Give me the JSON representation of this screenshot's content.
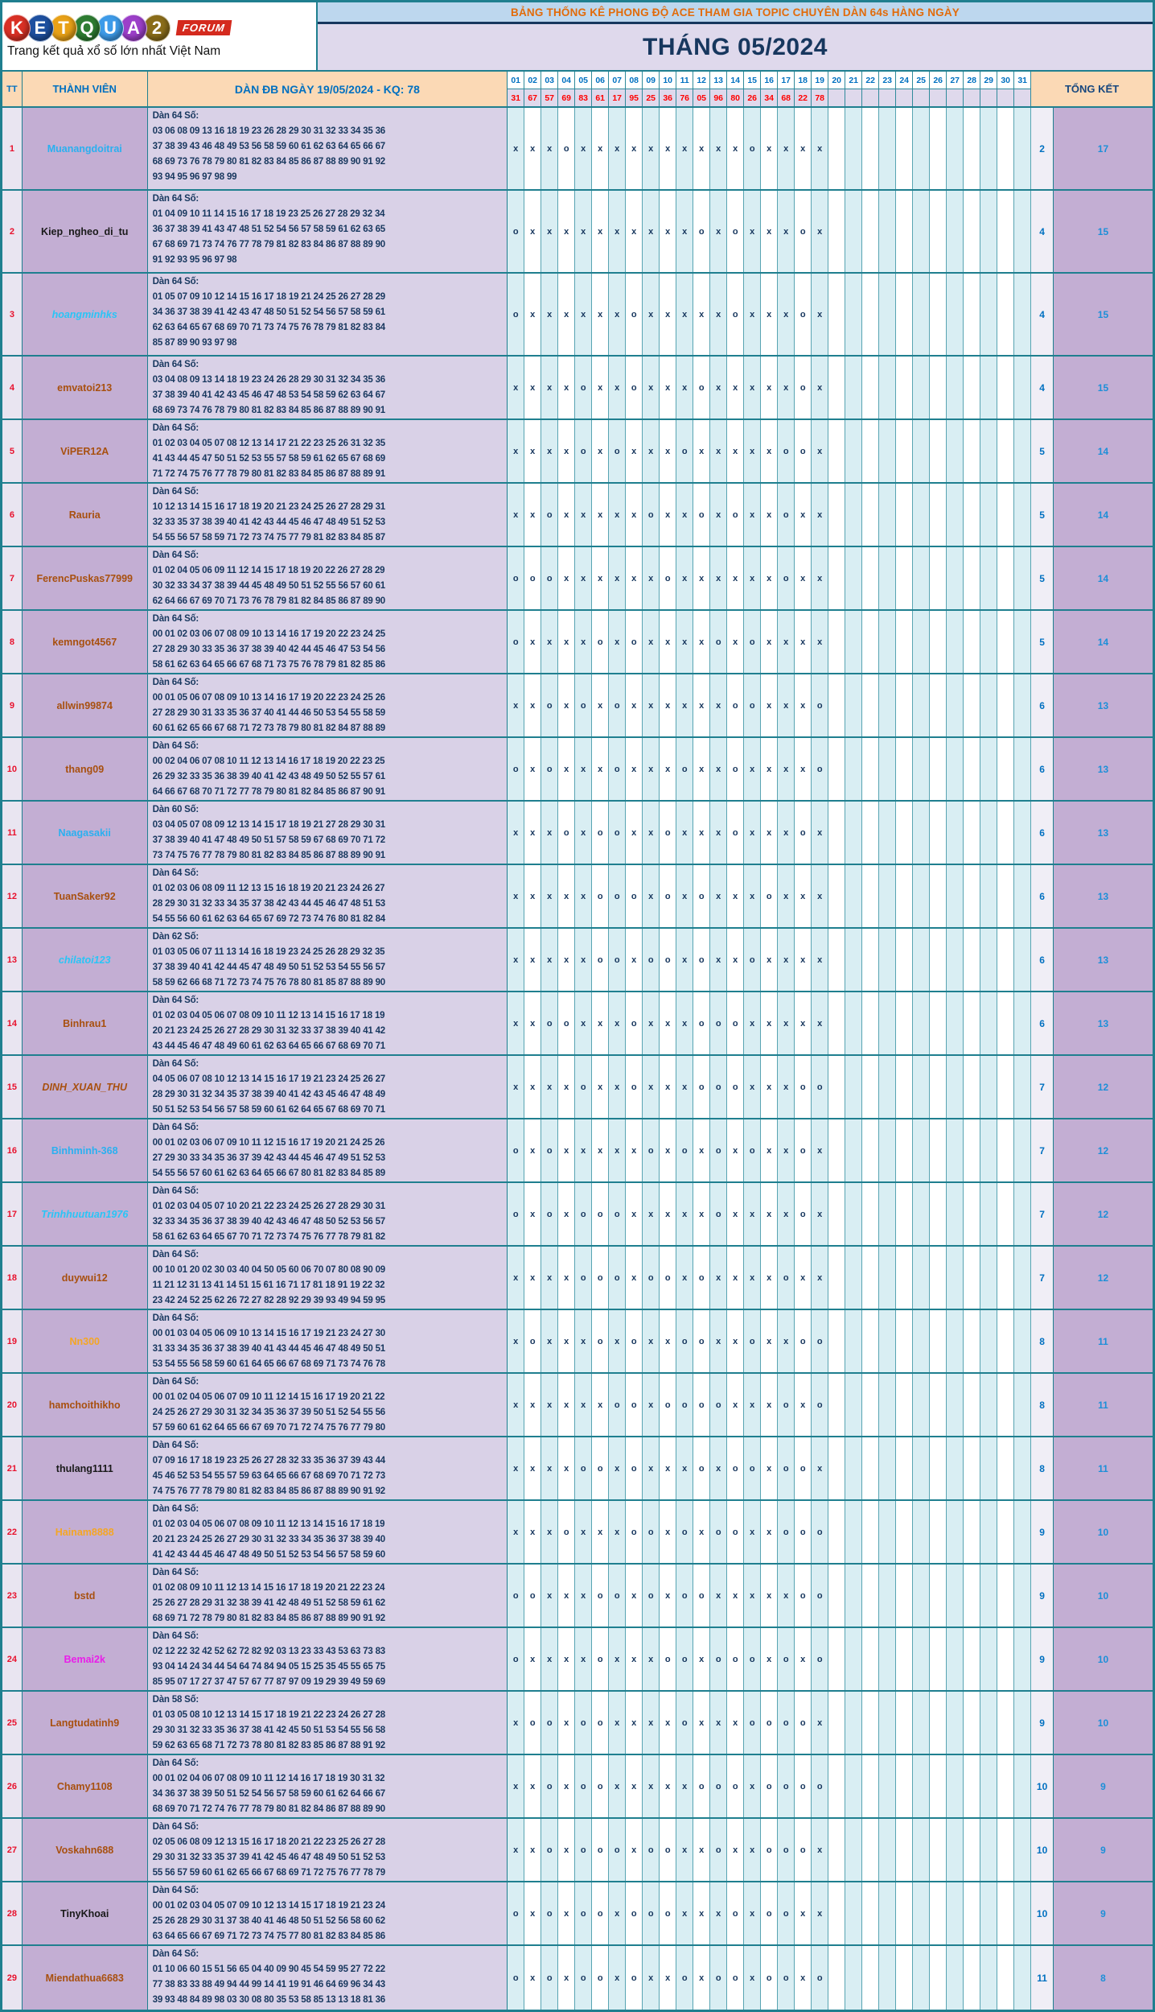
{
  "logo": {
    "letters": [
      {
        "ch": "K",
        "color": "#d93025"
      },
      {
        "ch": "E",
        "color": "#1e50a0"
      },
      {
        "ch": "T",
        "color": "#e8a117"
      },
      {
        "ch": "Q",
        "color": "#2e7d32"
      },
      {
        "ch": "U",
        "color": "#3d9be9"
      },
      {
        "ch": "A",
        "color": "#9c3fc9"
      },
      {
        "ch": "2",
        "color": "#8a6d1a"
      }
    ],
    "forum_badge": "FORUM",
    "tagline": "Trang kết quả xổ số lớn nhất Việt Nam"
  },
  "header": {
    "banner": "BẢNG THỐNG KÊ PHONG ĐỘ ACE THAM GIA TOPIC CHUYÊN DÀN 64s HÀNG NGÀY",
    "month": "THÁNG 05/2024"
  },
  "columns": {
    "tt": "TT",
    "member": "THÀNH VIÊN",
    "dan": "DÀN ĐB NGÀY 19/05/2024 - KQ: 78",
    "total": "TỔNG KẾT"
  },
  "days": [
    "01",
    "02",
    "03",
    "04",
    "05",
    "06",
    "07",
    "08",
    "09",
    "10",
    "11",
    "12",
    "13",
    "14",
    "15",
    "16",
    "17",
    "18",
    "19",
    "20",
    "21",
    "22",
    "23",
    "24",
    "25",
    "26",
    "27",
    "28",
    "29",
    "30",
    "31"
  ],
  "kq_values": [
    "31",
    "67",
    "57",
    "69",
    "83",
    "61",
    "17",
    "95",
    "25",
    "36",
    "76",
    "05",
    "96",
    "80",
    "26",
    "34",
    "68",
    "22",
    "78",
    "",
    "",
    "",
    "",
    "",
    "",
    "",
    "",
    "",
    "",
    "",
    ""
  ],
  "mark_colors": {
    "mark": "#17375e",
    "col_odd_bg": "#d9eef3",
    "col_even_bg": "#ffffff"
  },
  "members": [
    {
      "tt": "1",
      "name": "Muanangdoitrai",
      "color": "#2ab0f0",
      "italic": false,
      "dan_label": "Dàn 64 Số:",
      "numbers": [
        "03 06 08 09 13 16 18 19 23 26 28 29 30 31 32 33 34 35 36",
        "37 38 39 43 46 48 49 53 56 58 59 60 61 62 63 64 65 66 67",
        "68 69 73 76 78 79 80 81 82 83 84 85 86 87 88 89 90 91 92",
        "93 94 95 96 97 98 99"
      ],
      "marks": "xxxoxxxxxxxxxxoxxxx",
      "total_o": "2",
      "total_x": "17"
    },
    {
      "tt": "2",
      "name": "Kiep_ngheo_di_tu",
      "color": "#1a1a1a",
      "italic": false,
      "dan_label": "Dàn 64 Số:",
      "numbers": [
        "01 04 09 10 11 14 15 16 17 18 19 23 25 26 27 28 29 32 34",
        "36 37 38 39 41 43 47 48 51 52 54 56 57 58 59 61 62 63 65",
        "67 68 69 71 73 74 76 77 78 79 81 82 83 84 86 87 88 89 90",
        "91 92 93 95 96 97 98"
      ],
      "marks": "oxxxxxxxxxxoxoxxxox",
      "total_o": "4",
      "total_x": "15"
    },
    {
      "tt": "3",
      "name": "hoangminhks",
      "color": "#29c5f6",
      "italic": true,
      "dan_label": "Dàn 64 Số:",
      "numbers": [
        "01 05 07 09 10 12 14 15 16 17 18 19 21 24 25 26 27 28 29",
        "34 36 37 38 39 41 42 43 47 48 50 51 52 54 56 57 58 59 61",
        "62 63 64 65 67 68 69 70 71 73 74 75 76 78 79 81 82 83 84",
        "85 87 89 90 93 97 98"
      ],
      "marks": "oxxxxxxoxxxxxoxxxox",
      "total_o": "4",
      "total_x": "15"
    },
    {
      "tt": "4",
      "name": "emvatoi213",
      "color": "#a8500f",
      "italic": false,
      "dan_label": "Dàn 64 Số:",
      "numbers": [
        "03 04 08 09 13 14 18 19 23 24 26 28 29 30 31 32 34 35 36",
        "37 38 39 40 41 42 43 45 46 47 48 53 54 58 59 62 63 64 67",
        "68 69 73 74 76 78 79 80 81 82 83 84 85 86 87 88 89 90 91"
      ],
      "marks": "xxxxoxxoxxxoxxxxxox",
      "total_o": "4",
      "total_x": "15"
    },
    {
      "tt": "5",
      "name": "ViPER12A",
      "color": "#a8500f",
      "italic": false,
      "dan_label": "Dàn 64 Số:",
      "numbers": [
        "01 02 03 04 05 07 08 12 13 14 17 21 22 23 25 26 31 32 35",
        "41 43 44 45 47 50 51 52 53 55 57 58 59 61 62 65 67 68 69",
        "71 72 74 75 76 77 78 79 80 81 82 83 84 85 86 87 88 89 91"
      ],
      "marks": "xxxxoxoxxxoxxxxxoox",
      "total_o": "5",
      "total_x": "14"
    },
    {
      "tt": "6",
      "name": "Rauria",
      "color": "#a8500f",
      "italic": false,
      "dan_label": "Dàn 64 Số:",
      "numbers": [
        "10 12 13 14 15 16 17 18 19 20 21 23 24 25 26 27 28 29 31",
        "32 33 35 37 38 39 40 41 42 43 44 45 46 47 48 49 51 52 53",
        "54 55 56 57 58 59 71 72 73 74 75 77 79 81 82 83 84 85 87"
      ],
      "marks": "xxoxxxxxoxxoxoxxoxx",
      "total_o": "5",
      "total_x": "14"
    },
    {
      "tt": "7",
      "name": "FerencPuskas77999",
      "color": "#a8500f",
      "italic": false,
      "dan_label": "Dàn 64 Số:",
      "numbers": [
        "01 02 04 05 06 09 11 12 14 15 17 18 19 20 22 26 27 28 29",
        "30 32 33 34 37 38 39 44 45 48 49 50 51 52 55 56 57 60 61",
        "62 64 66 67 69 70 71 73 76 78 79 81 82 84 85 86 87 89 90"
      ],
      "marks": "oooxxxxxxoxxxxxxoxx",
      "total_o": "5",
      "total_x": "14"
    },
    {
      "tt": "8",
      "name": "kemngot4567",
      "color": "#a8500f",
      "italic": false,
      "dan_label": "Dàn 64 Số:",
      "numbers": [
        "00 01 02 03 06 07 08 09 10 13 14 16 17 19 20 22 23 24 25",
        "27 28 29 30 33 35 36 37 38 39 40 42 44 45 46 47 53 54 56",
        "58 61 62 63 64 65 66 67 68 71 73 75 76 78 79 81 82 85 86"
      ],
      "marks": "oxxxxoxoxxxxoxoxxxx",
      "total_o": "5",
      "total_x": "14"
    },
    {
      "tt": "9",
      "name": "allwin99874",
      "color": "#a8500f",
      "italic": false,
      "dan_label": "Dàn 64 Số:",
      "numbers": [
        "00 01 05 06 07 08 09 10 13 14 16 17 19 20 22 23 24 25 26",
        "27 28 29 30 31 33 35 36 37 40 41 44 46 50 53 54 55 58 59",
        "60 61 62 65 66 67 68 71 72 73 78 79 80 81 82 84 87 88 89"
      ],
      "marks": "xxoxoxoxxxxxxooxxxo",
      "total_o": "6",
      "total_x": "13"
    },
    {
      "tt": "10",
      "name": "thang09",
      "color": "#a8500f",
      "italic": false,
      "dan_label": "Dàn 64 Số:",
      "numbers": [
        "00 02 04 06 07 08 10 11 12 13 14 16 17 18 19 20 22 23 25",
        "26 29 32 33 35 36 38 39 40 41 42 43 48 49 50 52 55 57 61",
        "64 66 67 68 70 71 72 77 78 79 80 81 82 84 85 86 87 90 91"
      ],
      "marks": "oxoxxxoxxxoxxoxxxxo",
      "total_o": "6",
      "total_x": "13"
    },
    {
      "tt": "11",
      "name": "Naagasakii",
      "color": "#2ab0f0",
      "italic": false,
      "dan_label": "Dàn 60 Số:",
      "numbers": [
        "03 04 05 07 08 09 12 13 14 15 17 18 19 21 27 28 29 30 31",
        "37 38 39 40 41 47 48 49 50 51 57 58 59 67 68 69 70 71 72",
        "73 74 75 76 77 78 79 80 81 82 83 84 85 86 87 88 89 90 91"
      ],
      "marks": "xxxoxooxxoxxxoxxxox",
      "total_o": "6",
      "total_x": "13"
    },
    {
      "tt": "12",
      "name": "TuanSaker92",
      "color": "#a8500f",
      "italic": false,
      "dan_label": "Dàn 64 Số:",
      "numbers": [
        "01 02 03 06 08 09 11 12 13 15 16 18 19 20 21 23 24 26 27",
        "28 29 30 31 32 33 34 35 37 38 42 43 44 45 46 47 48 51 53",
        "54 55 56 60 61 62 63 64 65 67 69 72 73 74 76 80 81 82 84"
      ],
      "marks": "xxxxxoooxoxoxxxoxxx",
      "total_o": "6",
      "total_x": "13"
    },
    {
      "tt": "13",
      "name": "chilatoi123",
      "color": "#29c5f6",
      "italic": true,
      "dan_label": "Dàn 62 Số:",
      "numbers": [
        "01 03 05 06 07 11 13 14 16 18 19 23 24 25 26 28 29 32 35",
        "37 38 39 40 41 42 44 45 47 48 49 50 51 52 53 54 55 56 57",
        "58 59 62 66 68 71 72 73 74 75 76 78 80 81 85 87 88 89 90"
      ],
      "marks": "xxxxxooxooxoxxoxxxx",
      "total_o": "6",
      "total_x": "13"
    },
    {
      "tt": "14",
      "name": "Binhrau1",
      "color": "#a8500f",
      "italic": false,
      "dan_label": "Dàn 64 Số:",
      "numbers": [
        "01 02 03 04 05 06 07 08 09 10 11 12 13 14 15 16 17 18 19",
        "20 21 23 24 25 26 27 28 29 30 31 32 33 37 38 39 40 41 42",
        "43 44 45 46 47 48 49 60 61 62 63 64 65 66 67 68 69 70 71"
      ],
      "marks": "xxooxxxoxxxoooxxxxx",
      "total_o": "6",
      "total_x": "13"
    },
    {
      "tt": "15",
      "name": "DINH_XUAN_THU",
      "color": "#a8500f",
      "italic": true,
      "dan_label": "Dàn 64 Số:",
      "numbers": [
        "04 05 06 07 08 10 12 13 14 15 16 17 19 21 23 24 25 26 27",
        "28 29 30 31 32 34 35 37 38 39 40 41 42 43 45 46 47 48 49",
        "50 51 52 53 54 56 57 58 59 60 61 62 64 65 67 68 69 70 71"
      ],
      "marks": "xxxxoxxoxxxoooxxxoo",
      "total_o": "7",
      "total_x": "12"
    },
    {
      "tt": "16",
      "name": "Binhminh-368",
      "color": "#2ab0f0",
      "italic": false,
      "dan_label": "Dàn 64 Số:",
      "numbers": [
        "00 01 02 03 06 07 09 10 11 12 15 16 17 19 20 21 24 25 26",
        "27 29 30 33 34 35 36 37 39 42 43 44 45 46 47 49 51 52 53",
        "54 55 56 57 60 61 62 63 64 65 66 67 80 81 82 83 84 85 89"
      ],
      "marks": "oxoxxxxxoxoxoxoxxox",
      "total_o": "7",
      "total_x": "12"
    },
    {
      "tt": "17",
      "name": "Trinhhuutuan1976",
      "color": "#29c5f6",
      "italic": true,
      "dan_label": "Dàn 64 Số:",
      "numbers": [
        "01 02 03 04 05 07 10 20 21 22 23 24 25 26 27 28 29 30 31",
        "32 33 34 35 36 37 38 39 40 42 43 46 47 48 50 52 53 56 57",
        "58 61 62 63 64 65 67 70 71 72 73 74 75 76 77 78 79 81 82"
      ],
      "marks": "oxoxoooxxxxxoxxxxox",
      "total_o": "7",
      "total_x": "12"
    },
    {
      "tt": "18",
      "name": "duywui12",
      "color": "#a8500f",
      "italic": false,
      "dan_label": "Dàn 64 Số:",
      "numbers": [
        "00 10 01 20 02 30 03 40 04 50 05 60 06 70 07 80 08 90 09",
        "11 21 12 31 13 41 14 51 15 61 16 71 17 81 18 91 19 22 32",
        "23 42 24 52 25 62 26 72 27 82 28 92 29 39 93 49 94 59 95"
      ],
      "marks": "xxxxoooxooxoxxxxoxx",
      "total_o": "7",
      "total_x": "12"
    },
    {
      "tt": "19",
      "name": "Nn300",
      "color": "#f5a623",
      "italic": false,
      "dan_label": "Dàn 64 Số:",
      "numbers": [
        "00 01 03 04 05 06 09 10 13 14 15 16 17 19 21 23 24 27 30",
        "31 33 34 35 36 37 38 39 40 41 43 44 45 46 47 48 49 50 51",
        "53 54 55 56 58 59 60 61 64 65 66 67 68 69 71 73 74 76 78"
      ],
      "marks": "xoxxxoxoxxooxxoxxoo",
      "total_o": "8",
      "total_x": "11"
    },
    {
      "tt": "20",
      "name": "hamchoithikho",
      "color": "#a8500f",
      "italic": false,
      "dan_label": "Dàn 64 Số:",
      "numbers": [
        "00 01 02 04 05 06 07 09 10 11 12 14 15 16 17 19 20 21 22",
        "24 25 26 27 29 30 31 32 34 35 36 37 39 50 51 52 54 55 56",
        "57 59 60 61 62 64 65 66 67 69 70 71 72 74 75 76 77 79 80"
      ],
      "marks": "xxxxxxooxooooxxxoxo",
      "total_o": "8",
      "total_x": "11"
    },
    {
      "tt": "21",
      "name": "thulang1111",
      "color": "#1a1a1a",
      "italic": false,
      "dan_label": "Dàn 64 Số:",
      "numbers": [
        "07 09 16 17 18 19 23 25 26 27 28 32 33 35 36 37 39 43 44",
        "45 46 52 53 54 55 57 59 63 64 65 66 67 68 69 70 71 72 73",
        "74 75 76 77 78 79 80 81 82 83 84 85 86 87 88 89 90 91 92"
      ],
      "marks": "xxxxooxoxxxoxooxoox",
      "total_o": "8",
      "total_x": "11"
    },
    {
      "tt": "22",
      "name": "Hainam8888",
      "color": "#f5a623",
      "italic": false,
      "dan_label": "Dàn 64 Số:",
      "numbers": [
        "01 02 03 04 05 06 07 08 09 10 11 12 13 14 15 16 17 18 19",
        "20 21 23 24 25 26 27 29 30 31 32 33 34 35 36 37 38 39 40",
        "41 42 43 44 45 46 47 48 49 50 51 52 53 54 56 57 58 59 60"
      ],
      "marks": "xxxoxxxooxoxooxxooo",
      "total_o": "9",
      "total_x": "10"
    },
    {
      "tt": "23",
      "name": "bstd",
      "color": "#a8500f",
      "italic": false,
      "dan_label": "Dàn 64 Số:",
      "numbers": [
        "01 02 08 09 10 11 12 13 14 15 16 17 18 19 20 21 22 23 24",
        "25 26 27 28 29 31 32 38 39 41 42 48 49 51 52 58 59 61 62",
        "68 69 71 72 78 79 80 81 82 83 84 85 86 87 88 89 90 91 92"
      ],
      "marks": "ooxxxooxoxooxxxxxoo",
      "total_o": "9",
      "total_x": "10"
    },
    {
      "tt": "24",
      "name": "Bemai2k",
      "color": "#e91ee9",
      "italic": false,
      "dan_label": "Dàn 64 Số:",
      "numbers": [
        "02 12 22 32 42 52 62 72 82 92 03 13 23 33 43 53 63 73 83",
        "93 04 14 24 34 44 54 64 74 84 94 05 15 25 35 45 55 65 75",
        "85 95 07 17 27 37 47 57 67 77 87 97 09 19 29 39 49 59 69"
      ],
      "marks": "oxxxxoxxxooxoooxoxo",
      "total_o": "9",
      "total_x": "10"
    },
    {
      "tt": "25",
      "name": "Langtudatinh9",
      "color": "#a8500f",
      "italic": false,
      "dan_label": "Dàn 58 Số:",
      "numbers": [
        "01 03 05 08 10 12 13 14 15 17 18 19 21 22 23 24 26 27 28",
        "29 30 31 32 33 35 36 37 38 41 42 45 50 51 53 54 55 56 58",
        "59 62 63 65 68 71 72 73 78 80 81 82 83 85 86 87 88 91 92"
      ],
      "marks": "xooxooxxxxoxxxoooox",
      "total_o": "9",
      "total_x": "10"
    },
    {
      "tt": "26",
      "name": "Chamy1108",
      "color": "#a8500f",
      "italic": false,
      "dan_label": "Dàn 64 Số:",
      "numbers": [
        "00 01 02 04 06 07 08 09 10 11 12 14 16 17 18 19 30 31 32",
        "34 36 37 38 39 50 51 52 54 56 57 58 59 60 61 62 64 66 67",
        "68 69 70 71 72 74 76 77 78 79 80 81 82 84 86 87 88 89 90"
      ],
      "marks": "xxoxooxxxxxoooxoooo",
      "total_o": "10",
      "total_x": "9"
    },
    {
      "tt": "27",
      "name": "Voskahn688",
      "color": "#a8500f",
      "italic": false,
      "dan_label": "Dàn 64 Số:",
      "numbers": [
        "02 05 06 08 09 12 13 15 16 17 18 20 21 22 23 25 26 27 28",
        "29 30 31 32 33 35 37 39 41 42 45 46 47 48 49 50 51 52 53",
        "55 56 57 59 60 61 62 65 66 67 68 69 71 72 75 76 77 78 79"
      ],
      "marks": "xxoxoooxooxxoxxooox",
      "total_o": "10",
      "total_x": "9"
    },
    {
      "tt": "28",
      "name": "TinyKhoai",
      "color": "#1a1a1a",
      "italic": false,
      "dan_label": "Dàn 64 Số:",
      "numbers": [
        "00 01 02 03 04 05 07 09 10 12 13 14 15 17 18 19 21 23 24",
        "25 26 28 29 30 31 37 38 40 41 46 48 50 51 52 56 58 60 62",
        "63 64 65 66 67 69 71 72 73 74 75 77 80 81 82 83 84 85 86"
      ],
      "marks": "oxoxooxoooxxxoxooxx",
      "total_o": "10",
      "total_x": "9"
    },
    {
      "tt": "29",
      "name": "Miendathua6683",
      "color": "#a8500f",
      "italic": false,
      "dan_label": "Dàn 64 Số:",
      "numbers": [
        "01 10 06 60 15 51 56 65 04 40 09 90 45 54 59 95 27 72 22",
        "77 38 83 33 88 49 94 44 99 14 41 19 91 46 64 69 96 34 43",
        "39 93 48 84 89 98 03 30 08 80 35 53 58 85 13 13 18 81 36"
      ],
      "marks": "oxoxooxoxxoxooxooxo",
      "total_o": "11",
      "total_x": "8"
    }
  ]
}
